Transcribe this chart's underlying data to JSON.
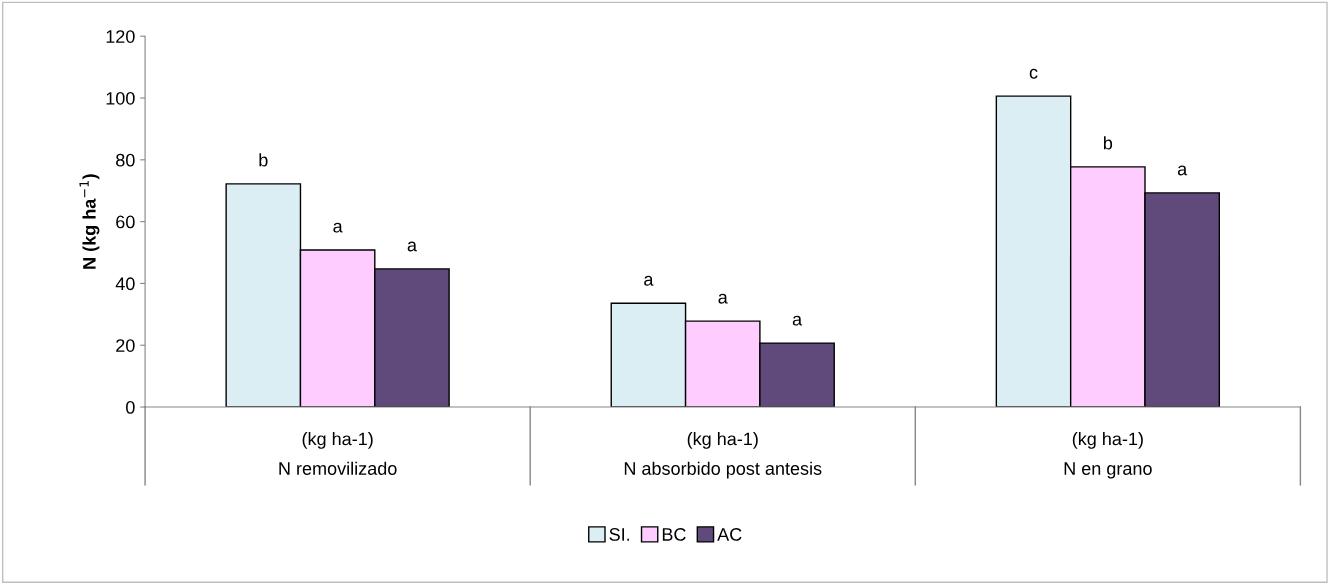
{
  "chart_data": {
    "type": "bar",
    "ylabel": "N (kg ha$^{−1}$)",
    "categories": [
      "(kg ha-1)\nN removilizado",
      "(kg ha-1)\nN absorbido post antesis",
      "(kg ha-1)\nN en grano"
    ],
    "series": [
      {
        "name": "SI.",
        "color": "#dbeef3",
        "values": [
          72.2,
          33.6,
          100.6
        ],
        "value_labels": [
          "b",
          "a",
          "c"
        ]
      },
      {
        "name": "BC",
        "color": "#ffccff",
        "values": [
          50.8,
          27.8,
          77.7
        ],
        "value_labels": [
          "a",
          "a",
          "b"
        ]
      },
      {
        "name": "AC",
        "color": "#604a7b",
        "values": [
          44.7,
          20.7,
          69.3
        ],
        "value_labels": [
          "a",
          "a",
          "a"
        ]
      }
    ],
    "ylim": [
      0,
      120
    ],
    "yticks": [
      0,
      20,
      40,
      60,
      80,
      100,
      120
    ],
    "grid": false,
    "legend": "bottom"
  }
}
